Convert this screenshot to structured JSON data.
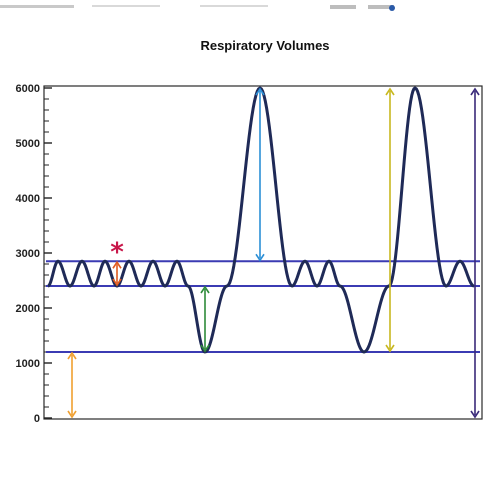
{
  "chart_data": {
    "type": "line",
    "title": "Respiratory Volumes",
    "xlabel": "",
    "ylabel": "",
    "ylim": [
      0,
      6000
    ],
    "yticks": [
      "0",
      "1000",
      "2000",
      "3000",
      "4000",
      "5000",
      "6000"
    ],
    "grid": false,
    "series": [
      {
        "color": "#1f2a57",
        "y": [
          2400,
          2850,
          2400,
          2850,
          2400,
          2850,
          2400,
          2850,
          2400,
          2850,
          2400,
          2850,
          2400,
          1200,
          2400,
          6000,
          2400,
          2850,
          2400,
          2850,
          2400,
          1200,
          2400,
          6000,
          2400,
          2850,
          2400
        ]
      }
    ],
    "reference_lines": [
      {
        "value": 2850,
        "color": "#3b3bb3"
      },
      {
        "value": 2400,
        "color": "#3b3bb3"
      },
      {
        "value": 1200,
        "color": "#3b3bb3"
      }
    ],
    "arrows": [
      {
        "from": 2400,
        "to": 2850,
        "color": "#e05a1e",
        "marker": "*"
      },
      {
        "from": 2850,
        "to": 6000,
        "color": "#2b8fd6"
      },
      {
        "from": 1200,
        "to": 2400,
        "color": "#2e8b3a"
      },
      {
        "from": 0,
        "to": 1200,
        "color": "#f0a030"
      },
      {
        "from": 1200,
        "to": 6000,
        "color": "#c8b820"
      },
      {
        "from": 0,
        "to": 6000,
        "color": "#3a2a7a"
      }
    ],
    "marker_color": "#c8174a"
  }
}
